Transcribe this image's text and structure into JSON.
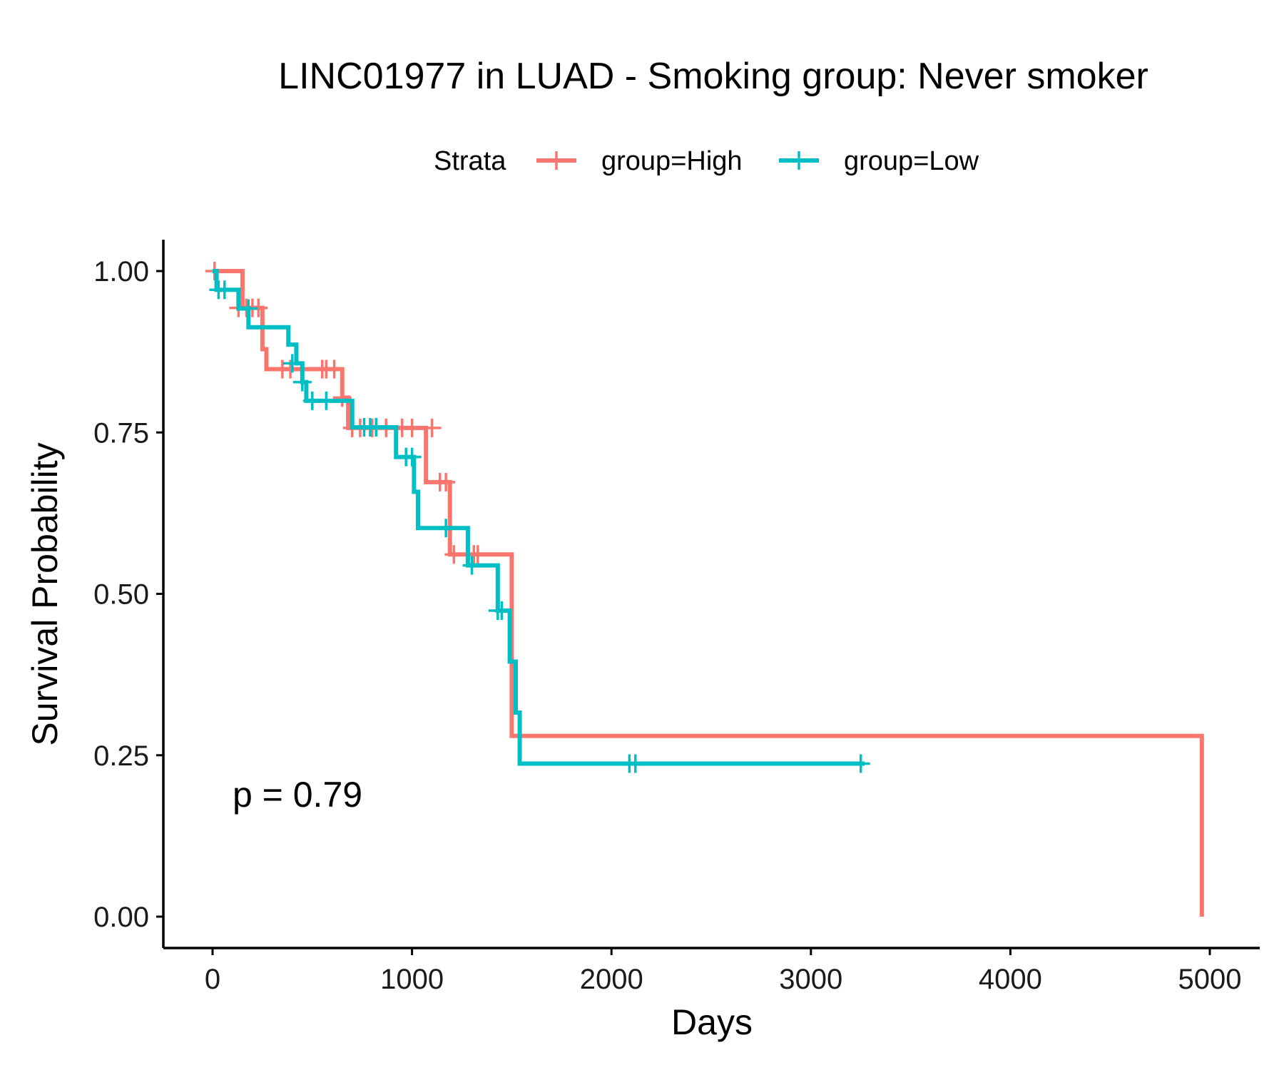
{
  "chart_data": {
    "type": "line",
    "subtype": "kaplan-meier",
    "title": "LINC01977 in LUAD - Smoking group: Never smoker",
    "xlabel": "Days",
    "ylabel": "Survival Probability",
    "xlim": [
      -250,
      5300
    ],
    "ylim": [
      -0.05,
      1.05
    ],
    "x_ticks": [
      0,
      1000,
      2000,
      3000,
      4000,
      5000
    ],
    "y_ticks": [
      0,
      0.25,
      0.5,
      0.75,
      1.0
    ],
    "y_tick_labels": [
      "0.00",
      "0.25",
      "0.50",
      "0.75",
      "1.00"
    ],
    "grid": false,
    "legend": {
      "title": "Strata",
      "position": "top"
    },
    "annotation": "p = 0.79",
    "annotation_at": {
      "x": 100,
      "y": 0.19
    },
    "series": [
      {
        "name": "group=High",
        "color": "#F8766D",
        "steps": [
          [
            0,
            1.0
          ],
          [
            150,
            0.943
          ],
          [
            250,
            0.879
          ],
          [
            270,
            0.848
          ],
          [
            650,
            0.804
          ],
          [
            680,
            0.757
          ],
          [
            1070,
            0.673
          ],
          [
            1190,
            0.561
          ],
          [
            1500,
            0.28
          ],
          [
            4960,
            0.0
          ]
        ],
        "end_x": 4960,
        "censored": [
          [
            10,
            1.0
          ],
          [
            130,
            0.943
          ],
          [
            170,
            0.943
          ],
          [
            200,
            0.943
          ],
          [
            230,
            0.943
          ],
          [
            350,
            0.848
          ],
          [
            390,
            0.848
          ],
          [
            550,
            0.848
          ],
          [
            570,
            0.848
          ],
          [
            610,
            0.848
          ],
          [
            650,
            0.804
          ],
          [
            700,
            0.757
          ],
          [
            740,
            0.757
          ],
          [
            800,
            0.757
          ],
          [
            870,
            0.757
          ],
          [
            950,
            0.757
          ],
          [
            1000,
            0.757
          ],
          [
            1100,
            0.757
          ],
          [
            1140,
            0.673
          ],
          [
            1170,
            0.673
          ],
          [
            1210,
            0.561
          ],
          [
            1310,
            0.561
          ],
          [
            1330,
            0.561
          ]
        ]
      },
      {
        "name": "group=Low",
        "color": "#00BFC4",
        "steps": [
          [
            0,
            1.0
          ],
          [
            20,
            0.971
          ],
          [
            130,
            0.942
          ],
          [
            180,
            0.913
          ],
          [
            380,
            0.886
          ],
          [
            420,
            0.857
          ],
          [
            450,
            0.828
          ],
          [
            470,
            0.799
          ],
          [
            700,
            0.758
          ],
          [
            920,
            0.712
          ],
          [
            1010,
            0.658
          ],
          [
            1030,
            0.602
          ],
          [
            1280,
            0.544
          ],
          [
            1430,
            0.474
          ],
          [
            1490,
            0.395
          ],
          [
            1520,
            0.316
          ],
          [
            1540,
            0.237
          ]
        ],
        "end_x": 3270,
        "censored": [
          [
            30,
            0.971
          ],
          [
            60,
            0.971
          ],
          [
            180,
            0.942
          ],
          [
            400,
            0.857
          ],
          [
            450,
            0.828
          ],
          [
            500,
            0.799
          ],
          [
            570,
            0.799
          ],
          [
            760,
            0.758
          ],
          [
            790,
            0.758
          ],
          [
            820,
            0.758
          ],
          [
            970,
            0.712
          ],
          [
            1000,
            0.712
          ],
          [
            1170,
            0.602
          ],
          [
            1300,
            0.544
          ],
          [
            1430,
            0.474
          ],
          [
            1450,
            0.474
          ],
          [
            2090,
            0.237
          ],
          [
            2120,
            0.237
          ],
          [
            3250,
            0.237
          ]
        ]
      }
    ]
  }
}
